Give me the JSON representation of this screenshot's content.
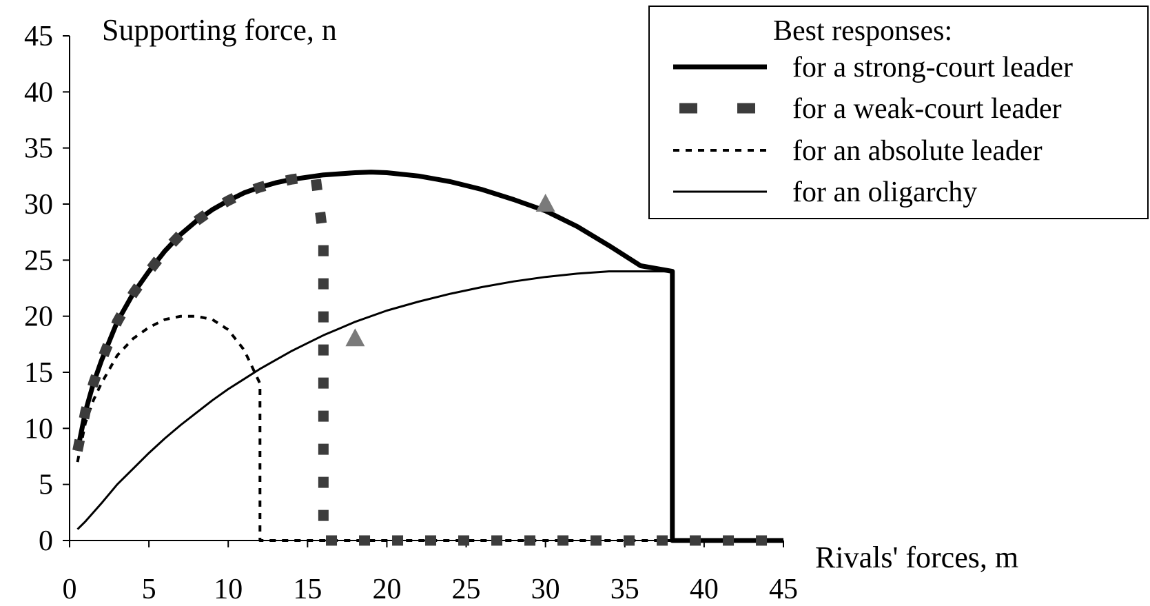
{
  "chart_data": {
    "type": "line",
    "ylabel": "Supporting force, n",
    "xlabel": "Rivals' forces, m",
    "xlim": [
      0,
      45
    ],
    "ylim": [
      0,
      45
    ],
    "xticks": [
      "0",
      "5",
      "10",
      "15",
      "20",
      "25",
      "30",
      "35",
      "40",
      "45"
    ],
    "yticks": [
      "0",
      "5",
      "10",
      "15",
      "20",
      "25",
      "30",
      "35",
      "40",
      "45"
    ],
    "grid": false,
    "legend_title": "Best responses:",
    "legend_position": "top-right",
    "series": [
      {
        "name": "for a strong-court leader",
        "style": "solid-thick",
        "color": "#000000",
        "x": [
          0.5,
          1,
          1.5,
          2,
          3,
          4,
          5,
          6,
          7,
          8,
          9,
          10,
          11,
          12,
          13,
          14,
          15,
          16,
          17,
          18,
          19,
          20,
          22,
          24,
          26,
          28,
          30,
          32,
          34,
          36,
          38,
          38,
          39,
          42,
          45
        ],
        "y": [
          8,
          11.5,
          14,
          16,
          19.5,
          22,
          24,
          25.8,
          27.3,
          28.5,
          29.5,
          30.3,
          31,
          31.5,
          31.9,
          32.2,
          32.4,
          32.6,
          32.7,
          32.8,
          32.85,
          32.8,
          32.5,
          32,
          31.3,
          30.4,
          29.4,
          28,
          26.3,
          24.5,
          24,
          0,
          0,
          0,
          0
        ]
      },
      {
        "name": "for a weak-court leader",
        "style": "dashed-thick",
        "color": "#3c3c3c",
        "x": [
          0.5,
          1,
          1.5,
          2,
          3,
          4,
          5,
          6,
          7,
          8,
          9,
          10,
          11,
          12,
          13,
          14,
          15,
          15.5,
          16,
          16,
          17,
          20,
          25,
          30,
          35,
          38,
          42,
          45
        ],
        "y": [
          8,
          11.5,
          14,
          16,
          19.5,
          22,
          24,
          25.8,
          27.3,
          28.5,
          29.5,
          30.3,
          31,
          31.5,
          31.9,
          32.2,
          32.4,
          32.5,
          27,
          0,
          0,
          0,
          0,
          0,
          0,
          0,
          0,
          0
        ]
      },
      {
        "name": "for an absolute leader",
        "style": "dotted",
        "color": "#000000",
        "x": [
          0.5,
          1,
          1.5,
          2,
          3,
          4,
          5,
          6,
          7,
          7.5,
          8,
          9,
          10,
          11,
          11.5,
          12,
          12,
          15,
          20,
          25,
          30,
          35,
          38,
          45
        ],
        "y": [
          7,
          10.5,
          12.5,
          14,
          16.5,
          18,
          19,
          19.7,
          20,
          20,
          20,
          19.7,
          18.8,
          17,
          15.5,
          14,
          0,
          0,
          0,
          0,
          0,
          0,
          0,
          0
        ]
      },
      {
        "name": "for an oligarchy",
        "style": "solid-thin",
        "color": "#000000",
        "x": [
          0.5,
          1,
          2,
          3,
          4,
          5,
          6,
          7,
          8,
          9,
          10,
          11,
          12,
          13,
          14,
          15,
          16,
          17,
          18,
          20,
          22,
          24,
          26,
          28,
          30,
          32,
          34,
          36,
          38
        ],
        "y": [
          1,
          1.7,
          3.3,
          5,
          6.4,
          7.8,
          9.1,
          10.3,
          11.4,
          12.5,
          13.5,
          14.4,
          15.3,
          16.1,
          16.9,
          17.6,
          18.3,
          18.9,
          19.5,
          20.5,
          21.3,
          22,
          22.6,
          23.1,
          23.5,
          23.8,
          24,
          24,
          24
        ]
      }
    ],
    "markers": [
      {
        "shape": "triangle",
        "color": "#7a7a7a",
        "x": 18,
        "y": 18
      },
      {
        "shape": "triangle",
        "color": "#7a7a7a",
        "x": 30,
        "y": 30
      }
    ]
  }
}
